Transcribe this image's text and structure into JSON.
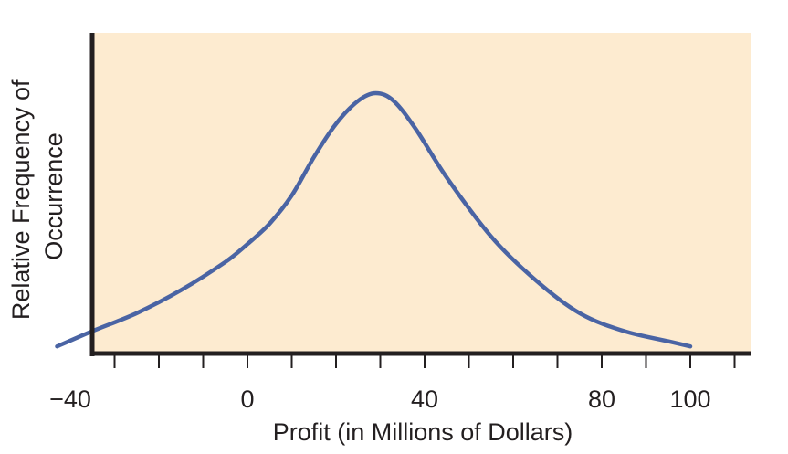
{
  "chart_data": {
    "type": "line",
    "title": "",
    "xlabel": "Profit (in Millions of Dollars)",
    "ylabel_lines": [
      "Relative Frequency of",
      "Occurrence"
    ],
    "xlim": [
      -45,
      115
    ],
    "x_tick_step": 10,
    "x_tick_labels": [
      {
        "value": -40,
        "label": "−40"
      },
      {
        "value": 0,
        "label": "0"
      },
      {
        "value": 40,
        "label": "40"
      },
      {
        "value": 80,
        "label": "80"
      },
      {
        "value": 100,
        "label": "100"
      }
    ],
    "y_ticks_shown": false,
    "grid": false,
    "colors": {
      "plot_background": "#fdebd0",
      "line": "#4a64a4",
      "axis": "#231f20"
    },
    "series": [
      {
        "x": [
          -43,
          -35,
          -25,
          -15,
          -5,
          0,
          5,
          10,
          15,
          20,
          25,
          29,
          33,
          38,
          45,
          55,
          65,
          75,
          85,
          95,
          100
        ],
        "y": [
          0.01,
          0.07,
          0.14,
          0.23,
          0.34,
          0.41,
          0.49,
          0.6,
          0.75,
          0.88,
          0.97,
          1.0,
          0.97,
          0.86,
          0.67,
          0.44,
          0.27,
          0.14,
          0.07,
          0.03,
          0.01
        ]
      }
    ]
  }
}
